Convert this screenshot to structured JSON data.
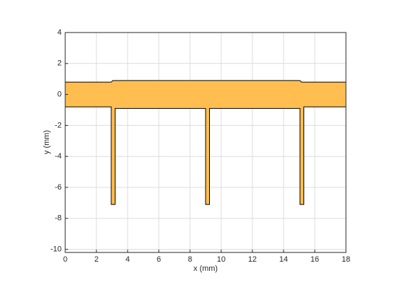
{
  "chart_data": {
    "type": "polygon",
    "xlabel": "x (mm)",
    "ylabel": "y (mm)",
    "x": [
      0,
      2.95,
      3.05,
      15.05,
      15.15,
      18,
      18,
      15.3,
      15.3,
      15.05,
      15.05,
      9.25,
      9.25,
      9,
      9,
      3.2,
      3.2,
      2.95,
      2.95,
      0
    ],
    "y": [
      0.8,
      0.8,
      0.9,
      0.9,
      0.8,
      0.8,
      -0.8,
      -0.8,
      -7.1,
      -7.1,
      -0.9,
      -0.9,
      -7.1,
      -7.1,
      -0.9,
      -0.9,
      -7.1,
      -7.1,
      -0.8,
      -0.8
    ],
    "color": "#ffbe4f",
    "edgecolor": "#000000",
    "xlim": [
      0,
      18
    ],
    "ylim": [
      -10.2,
      4
    ],
    "xticks": [
      0,
      2,
      4,
      6,
      8,
      10,
      12,
      14,
      16,
      18
    ],
    "yticks": [
      -10,
      -8,
      -6,
      -4,
      -2,
      0,
      2,
      4
    ],
    "grid": true
  }
}
